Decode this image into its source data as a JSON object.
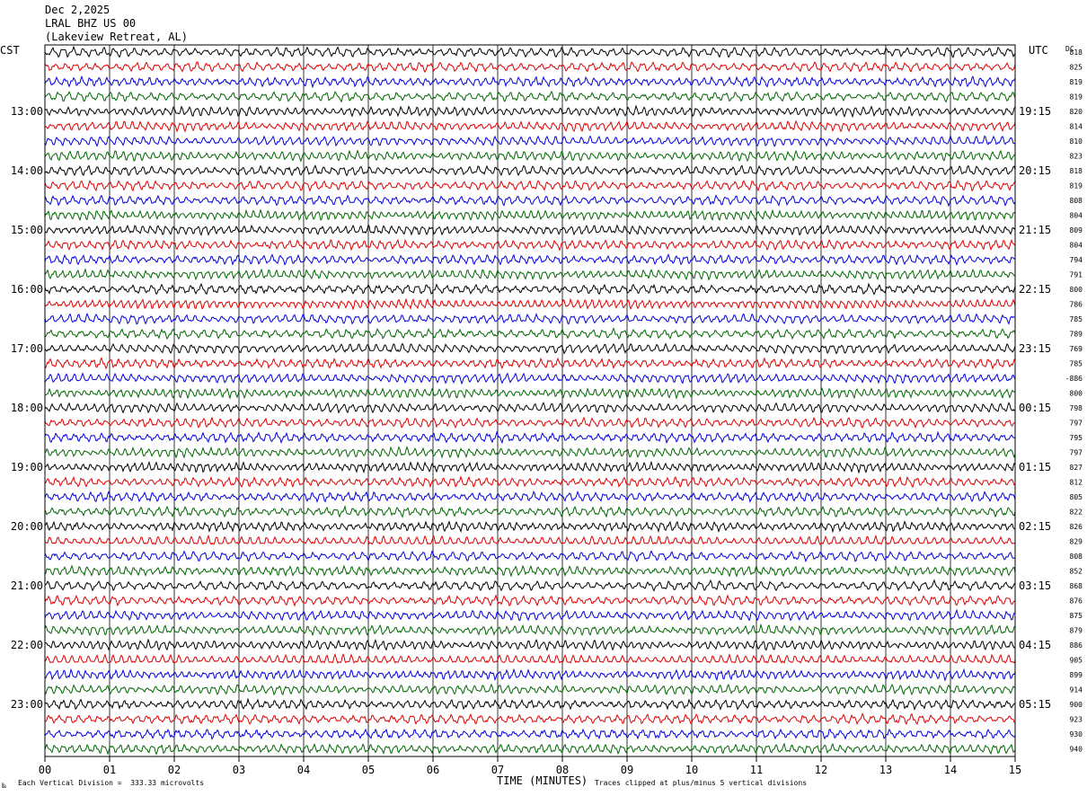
{
  "header": {
    "date": "Dec 2,2025",
    "station": "LRAL BHZ US 00",
    "location": "(Lakeview Retreat, AL)"
  },
  "left_timezone": "CST",
  "right_timezone": "UTC",
  "dc_label": "DC",
  "footer": {
    "scale_note": "Each Vertical Division =  333.33 microvolts",
    "clip_note": "Traces clipped at plus/minus 5 vertical divisions",
    "corner_glyph": "‰"
  },
  "chart_data": {
    "type": "line",
    "title": "",
    "xlabel": "TIME (MINUTES)",
    "ylabel": "",
    "x_ticks": [
      "00",
      "01",
      "02",
      "03",
      "04",
      "05",
      "06",
      "07",
      "08",
      "09",
      "10",
      "11",
      "12",
      "13",
      "14",
      "15"
    ],
    "xlim": [
      0,
      15
    ],
    "grid": true,
    "trace_colors": [
      "#000000",
      "#dd0000",
      "#0000dd",
      "#006600"
    ],
    "trace_count": 48,
    "left_hour_labels": [
      "13:00",
      "14:00",
      "15:00",
      "16:00",
      "17:00",
      "18:00",
      "19:00",
      "20:00",
      "21:00",
      "22:00",
      "23:00"
    ],
    "right_hour_labels": [
      "19:15",
      "20:15",
      "21:15",
      "22:15",
      "23:15",
      "00:15",
      "01:15",
      "02:15",
      "03:15",
      "04:15",
      "05:15"
    ],
    "dc_offsets": [
      "818",
      "825",
      "819",
      "819",
      "820",
      "814",
      "810",
      "823",
      "818",
      "819",
      "808",
      "804",
      "809",
      "804",
      "794",
      "791",
      "800",
      "786",
      "785",
      "789",
      "769",
      "785",
      "-886",
      "800",
      "798",
      "797",
      "795",
      "797",
      "827",
      "812",
      "805",
      "822",
      "826",
      "829",
      "808",
      "852",
      "868",
      "876",
      "875",
      "879",
      "886",
      "905",
      "899",
      "914",
      "900",
      "923",
      "930",
      "940"
    ]
  }
}
